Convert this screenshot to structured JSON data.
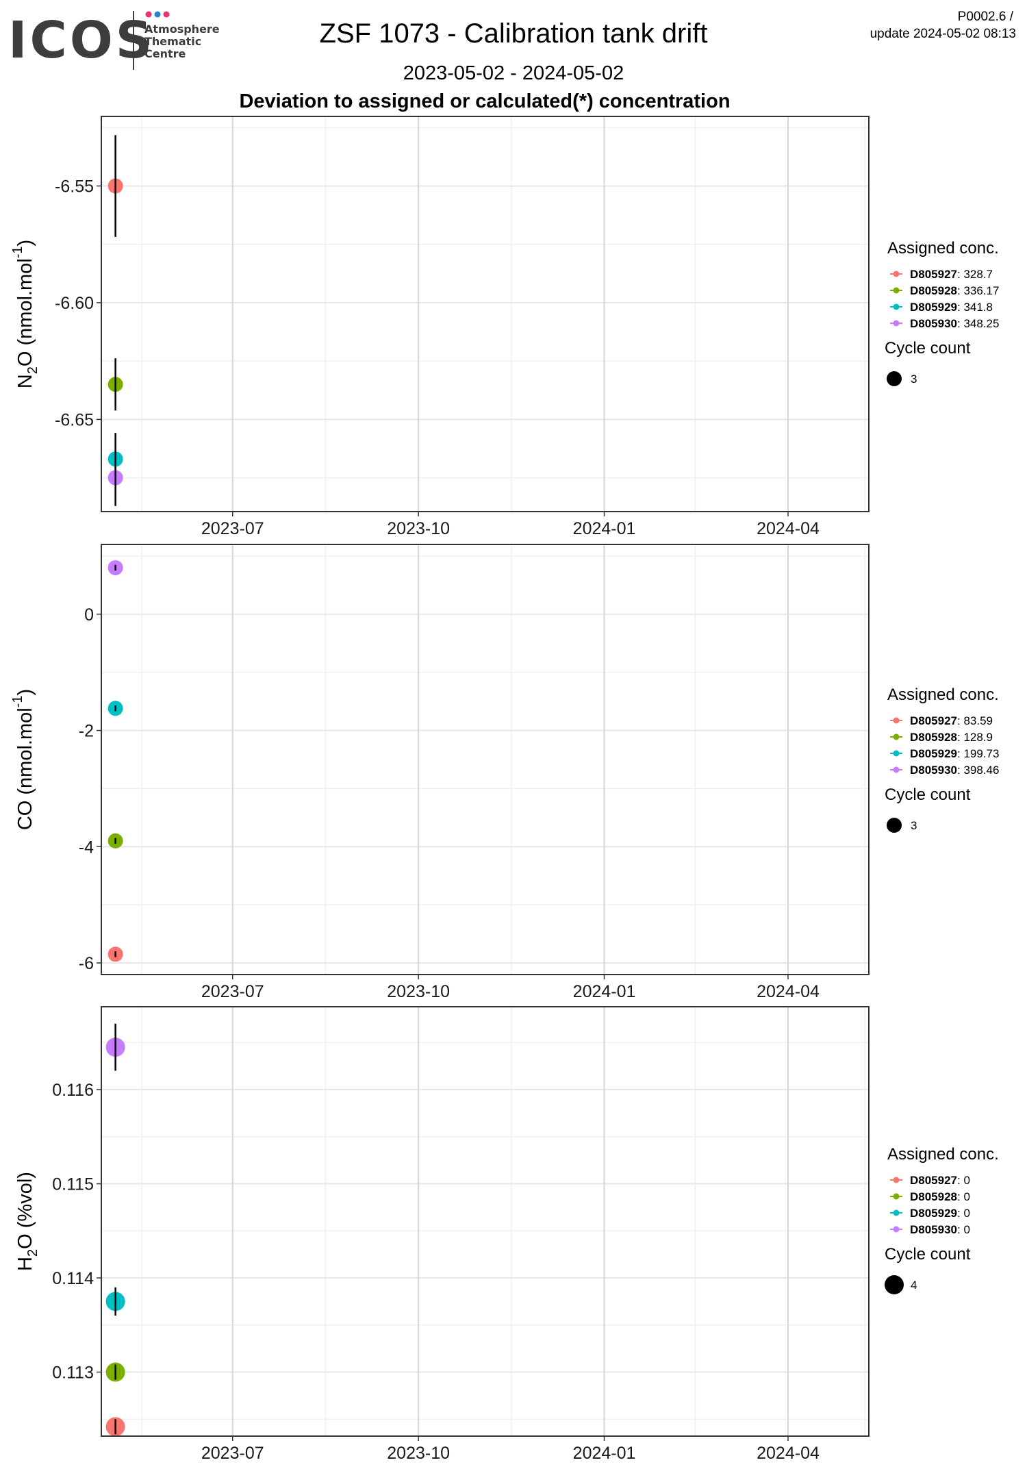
{
  "header": {
    "logo_text": "ICOS",
    "logo_sub": [
      "Atmosphere",
      "Thematic",
      "Centre"
    ],
    "logo_dot_colors": [
      "#e8336d",
      "#2a84c8",
      "#e8336d"
    ],
    "title": "ZSF 1073 - Calibration tank drift",
    "date_range": "2023-05-02 - 2024-05-02",
    "subtitle": "Deviation to assigned or calculated(*) concentration",
    "version": "P0002.6 /",
    "update": "update  2024-05-02 08:13"
  },
  "colors": {
    "D805927": "#f8766d",
    "D805928": "#7cae00",
    "D805929": "#00bfc4",
    "D805930": "#c77cff"
  },
  "chart_data": [
    {
      "type": "scatter",
      "ylabel": "N2O (nmol.mol-1)",
      "ylabel_parts": {
        "base": "N",
        "sub": "2",
        "mid": "O (nmol.mol",
        "sup": "-1",
        "end": ")"
      },
      "x_ticks": [
        "2023-07",
        "2023-10",
        "2024-01",
        "2024-04"
      ],
      "y_ticks": [
        -6.55,
        -6.6,
        -6.65
      ],
      "y_tick_labels": [
        "-6.55",
        "-6.60",
        "-6.65"
      ],
      "ylim": [
        -6.6895,
        -6.5202
      ],
      "series": [
        {
          "name": "D805927",
          "x": "2023-05-04",
          "y": -6.55,
          "err": 0.0218
        },
        {
          "name": "D805928",
          "x": "2023-05-04",
          "y": -6.635,
          "err": 0.0112
        },
        {
          "name": "D805929",
          "x": "2023-05-04",
          "y": -6.667,
          "err": 0.0112
        },
        {
          "name": "D805930",
          "x": "2023-05-04",
          "y": -6.675,
          "err": 0.0121
        }
      ],
      "legend": {
        "title": "Assigned conc.",
        "items": [
          {
            "name": "D805927",
            "value": ": 328.7"
          },
          {
            "name": "D805928",
            "value": ": 336.17"
          },
          {
            "name": "D805929",
            "value": ": 341.8"
          },
          {
            "name": "D805930",
            "value": ": 348.25"
          }
        ],
        "size_title": "Cycle count",
        "size_value": "3"
      }
    },
    {
      "type": "scatter",
      "ylabel": "CO (nmol.mol-1)",
      "ylabel_parts": {
        "base": "CO (nmol.mol",
        "sub": "",
        "mid": "",
        "sup": "-1",
        "end": ")"
      },
      "x_ticks": [
        "2023-07",
        "2023-10",
        "2024-01",
        "2024-04"
      ],
      "y_ticks": [
        0,
        -2,
        -4,
        -6
      ],
      "y_tick_labels": [
        "0",
        "-2",
        "-4",
        "-6"
      ],
      "ylim": [
        -6.2,
        1.2
      ],
      "series": [
        {
          "name": "D805927",
          "x": "2023-05-04",
          "y": -5.85,
          "err": 0.05
        },
        {
          "name": "D805928",
          "x": "2023-05-04",
          "y": -3.9,
          "err": 0.05
        },
        {
          "name": "D805929",
          "x": "2023-05-04",
          "y": -1.62,
          "err": 0.05
        },
        {
          "name": "D805930",
          "x": "2023-05-04",
          "y": 0.8,
          "err": 0.05
        }
      ],
      "legend": {
        "title": "Assigned conc.",
        "items": [
          {
            "name": "D805927",
            "value": ": 83.59"
          },
          {
            "name": "D805928",
            "value": ": 128.9"
          },
          {
            "name": "D805929",
            "value": ": 199.73"
          },
          {
            "name": "D805930",
            "value": ": 398.46"
          }
        ],
        "size_title": "Cycle count",
        "size_value": "3"
      }
    },
    {
      "type": "scatter",
      "ylabel": "H2O (%vol)",
      "ylabel_parts": {
        "base": "H",
        "sub": "2",
        "mid": "O (%vol)",
        "sup": "",
        "end": ""
      },
      "x_ticks": [
        "2023-07",
        "2023-10",
        "2024-01",
        "2024-04"
      ],
      "y_ticks": [
        0.116,
        0.115,
        0.114,
        0.113
      ],
      "y_tick_labels": [
        "0.116",
        "0.115",
        "0.114",
        "0.113"
      ],
      "ylim": [
        0.11232,
        0.11688
      ],
      "series": [
        {
          "name": "D805927",
          "x": "2023-05-04",
          "y": 0.11242,
          "err": 8e-05
        },
        {
          "name": "D805928",
          "x": "2023-05-04",
          "y": 0.113,
          "err": 8e-05
        },
        {
          "name": "D805929",
          "x": "2023-05-04",
          "y": 0.11375,
          "err": 0.00015
        },
        {
          "name": "D805930",
          "x": "2023-05-04",
          "y": 0.11645,
          "err": 0.00025
        }
      ],
      "legend": {
        "title": "Assigned conc.",
        "items": [
          {
            "name": "D805927",
            "value": ": 0"
          },
          {
            "name": "D805928",
            "value": ": 0"
          },
          {
            "name": "D805929",
            "value": ": 0"
          },
          {
            "name": "D805930",
            "value": ": 0"
          }
        ],
        "size_title": "Cycle count",
        "size_value": "4"
      }
    }
  ],
  "xlim": [
    "2023-04-27",
    "2024-05-11"
  ]
}
